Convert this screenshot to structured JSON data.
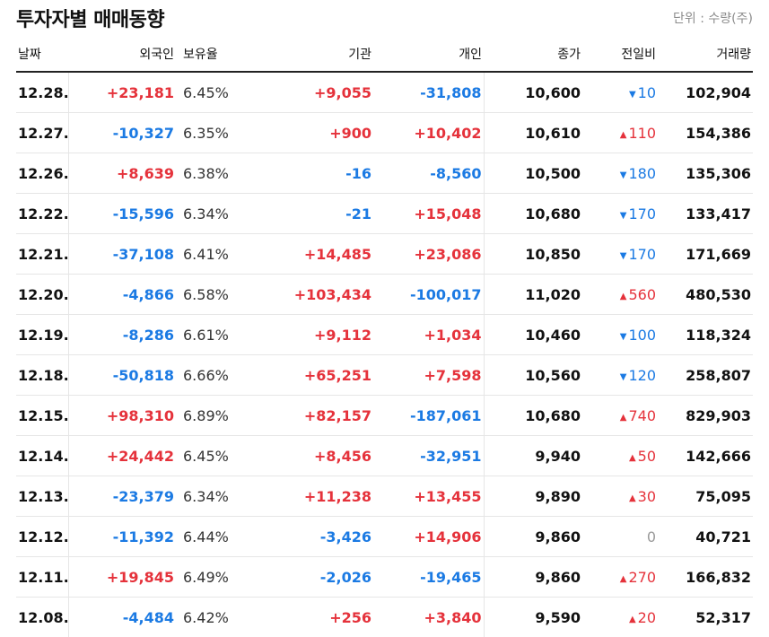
{
  "title": "투자자별 매매동향",
  "unit_label": "단위 : 수량(주)",
  "colors": {
    "up": "#e5323b",
    "down": "#1b7ae3",
    "flat": "#9a9a9a"
  },
  "columns": {
    "date": "날짜",
    "foreign": "외국인",
    "holding": "보유율",
    "institution": "기관",
    "individual": "개인",
    "close": "종가",
    "change": "전일비",
    "volume": "거래량"
  },
  "rows": [
    {
      "date": "12.28.",
      "foreign": "+23,181",
      "holding": "6.45%",
      "institution": "+9,055",
      "individual": "-31,808",
      "close": "10,600",
      "change_dir": "down",
      "change": "10",
      "volume": "102,904"
    },
    {
      "date": "12.27.",
      "foreign": "-10,327",
      "holding": "6.35%",
      "institution": "+900",
      "individual": "+10,402",
      "close": "10,610",
      "change_dir": "up",
      "change": "110",
      "volume": "154,386"
    },
    {
      "date": "12.26.",
      "foreign": "+8,639",
      "holding": "6.38%",
      "institution": "-16",
      "individual": "-8,560",
      "close": "10,500",
      "change_dir": "down",
      "change": "180",
      "volume": "135,306"
    },
    {
      "date": "12.22.",
      "foreign": "-15,596",
      "holding": "6.34%",
      "institution": "-21",
      "individual": "+15,048",
      "close": "10,680",
      "change_dir": "down",
      "change": "170",
      "volume": "133,417"
    },
    {
      "date": "12.21.",
      "foreign": "-37,108",
      "holding": "6.41%",
      "institution": "+14,485",
      "individual": "+23,086",
      "close": "10,850",
      "change_dir": "down",
      "change": "170",
      "volume": "171,669"
    },
    {
      "date": "12.20.",
      "foreign": "-4,866",
      "holding": "6.58%",
      "institution": "+103,434",
      "individual": "-100,017",
      "close": "11,020",
      "change_dir": "up",
      "change": "560",
      "volume": "480,530"
    },
    {
      "date": "12.19.",
      "foreign": "-8,286",
      "holding": "6.61%",
      "institution": "+9,112",
      "individual": "+1,034",
      "close": "10,460",
      "change_dir": "down",
      "change": "100",
      "volume": "118,324"
    },
    {
      "date": "12.18.",
      "foreign": "-50,818",
      "holding": "6.66%",
      "institution": "+65,251",
      "individual": "+7,598",
      "close": "10,560",
      "change_dir": "down",
      "change": "120",
      "volume": "258,807"
    },
    {
      "date": "12.15.",
      "foreign": "+98,310",
      "holding": "6.89%",
      "institution": "+82,157",
      "individual": "-187,061",
      "close": "10,680",
      "change_dir": "up",
      "change": "740",
      "volume": "829,903"
    },
    {
      "date": "12.14.",
      "foreign": "+24,442",
      "holding": "6.45%",
      "institution": "+8,456",
      "individual": "-32,951",
      "close": "9,940",
      "change_dir": "up",
      "change": "50",
      "volume": "142,666"
    },
    {
      "date": "12.13.",
      "foreign": "-23,379",
      "holding": "6.34%",
      "institution": "+11,238",
      "individual": "+13,455",
      "close": "9,890",
      "change_dir": "up",
      "change": "30",
      "volume": "75,095"
    },
    {
      "date": "12.12.",
      "foreign": "-11,392",
      "holding": "6.44%",
      "institution": "-3,426",
      "individual": "+14,906",
      "close": "9,860",
      "change_dir": "flat",
      "change": "0",
      "volume": "40,721"
    },
    {
      "date": "12.11.",
      "foreign": "+19,845",
      "holding": "6.49%",
      "institution": "-2,026",
      "individual": "-19,465",
      "close": "9,860",
      "change_dir": "up",
      "change": "270",
      "volume": "166,832"
    },
    {
      "date": "12.08.",
      "foreign": "-4,484",
      "holding": "6.42%",
      "institution": "+256",
      "individual": "+3,840",
      "close": "9,590",
      "change_dir": "up",
      "change": "20",
      "volume": "52,317"
    }
  ]
}
